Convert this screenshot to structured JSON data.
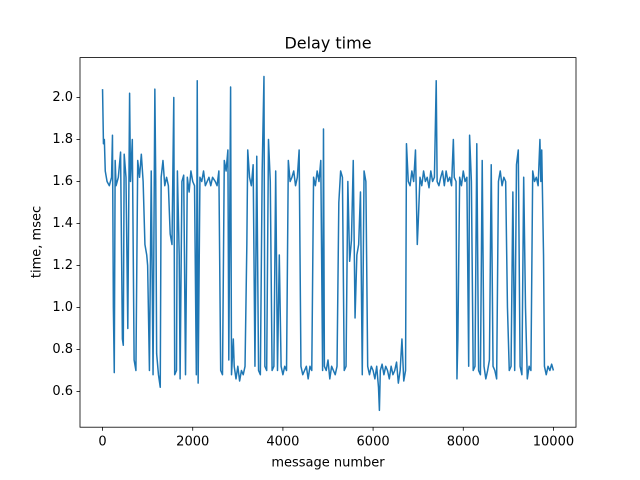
{
  "chart_data": {
    "type": "line",
    "title": "Delay time",
    "x_label": "message number",
    "y_label": "time, msec",
    "color": "#1f77b4",
    "x": [
      0,
      20,
      40,
      60,
      100,
      150,
      200,
      220,
      240,
      260,
      280,
      300,
      350,
      400,
      440,
      460,
      480,
      520,
      560,
      600,
      620,
      660,
      700,
      740,
      780,
      820,
      860,
      900,
      940,
      980,
      1000,
      1040,
      1080,
      1120,
      1160,
      1180,
      1200,
      1240,
      1280,
      1300,
      1340,
      1380,
      1420,
      1460,
      1500,
      1540,
      1580,
      1600,
      1640,
      1660,
      1700,
      1720,
      1760,
      1800,
      1840,
      1880,
      1920,
      1960,
      2000,
      2040,
      2080,
      2100,
      2120,
      2160,
      2200,
      2240,
      2280,
      2320,
      2360,
      2400,
      2440,
      2500,
      2540,
      2580,
      2620,
      2660,
      2700,
      2740,
      2780,
      2800,
      2840,
      2860,
      2900,
      2920,
      2960,
      3000,
      3040,
      3080,
      3120,
      3160,
      3200,
      3220,
      3260,
      3300,
      3340,
      3380,
      3420,
      3460,
      3500,
      3540,
      3580,
      3600,
      3640,
      3680,
      3720,
      3760,
      3800,
      3840,
      3880,
      3920,
      3960,
      4000,
      4040,
      4080,
      4120,
      4160,
      4200,
      4240,
      4280,
      4320,
      4360,
      4400,
      4440,
      4480,
      4520,
      4560,
      4600,
      4640,
      4680,
      4720,
      4760,
      4800,
      4840,
      4880,
      4900,
      4920,
      4960,
      5000,
      5040,
      5080,
      5120,
      5160,
      5200,
      5240,
      5280,
      5320,
      5360,
      5400,
      5440,
      5480,
      5520,
      5560,
      5600,
      5640,
      5680,
      5720,
      5760,
      5800,
      5840,
      5880,
      5920,
      5960,
      6000,
      6040,
      6080,
      6120,
      6140,
      6160,
      6200,
      6240,
      6280,
      6320,
      6360,
      6400,
      6440,
      6480,
      6520,
      6560,
      6600,
      6640,
      6680,
      6720,
      6740,
      6780,
      6820,
      6860,
      6900,
      6940,
      6980,
      7000,
      7040,
      7080,
      7120,
      7160,
      7200,
      7240,
      7280,
      7320,
      7360,
      7400,
      7420,
      7460,
      7500,
      7540,
      7580,
      7620,
      7660,
      7700,
      7740,
      7780,
      7800,
      7840,
      7860,
      7880,
      7920,
      7960,
      8000,
      8040,
      8080,
      8120,
      8140,
      8180,
      8220,
      8260,
      8300,
      8340,
      8380,
      8420,
      8460,
      8500,
      8540,
      8580,
      8620,
      8660,
      8700,
      8740,
      8780,
      8820,
      8860,
      8900,
      8940,
      8980,
      9020,
      9060,
      9100,
      9140,
      9180,
      9220,
      9260,
      9300,
      9340,
      9380,
      9420,
      9460,
      9500,
      9540,
      9580,
      9620,
      9660,
      9700,
      9720,
      9740,
      9780,
      9800,
      9840,
      9880,
      9920,
      9960,
      9999
    ],
    "values": [
      2.04,
      1.78,
      1.8,
      1.65,
      1.6,
      1.58,
      1.62,
      1.82,
      1.0,
      0.69,
      1.7,
      1.58,
      1.62,
      1.74,
      0.85,
      0.82,
      1.73,
      1.62,
      0.9,
      2.02,
      1.6,
      1.8,
      0.75,
      0.7,
      1.7,
      1.62,
      1.73,
      1.6,
      1.3,
      1.25,
      1.2,
      0.7,
      1.65,
      0.68,
      2.04,
      1.6,
      0.78,
      0.68,
      0.62,
      1.62,
      1.7,
      1.58,
      1.62,
      1.58,
      1.35,
      1.3,
      2.0,
      0.68,
      0.7,
      1.65,
      1.25,
      0.66,
      1.6,
      1.63,
      0.68,
      1.62,
      1.55,
      1.65,
      1.6,
      1.58,
      0.68,
      2.08,
      0.64,
      1.62,
      1.6,
      1.65,
      1.58,
      1.6,
      1.62,
      1.58,
      1.62,
      1.6,
      1.58,
      1.65,
      0.7,
      0.68,
      1.7,
      1.65,
      1.75,
      0.75,
      2.05,
      0.68,
      0.85,
      0.72,
      0.66,
      0.72,
      0.65,
      0.7,
      0.68,
      0.72,
      1.3,
      1.75,
      1.62,
      1.58,
      1.68,
      0.72,
      1.72,
      0.7,
      0.68,
      1.65,
      2.1,
      0.72,
      0.7,
      1.8,
      1.6,
      0.7,
      0.72,
      1.65,
      0.7,
      1.25,
      0.72,
      0.68,
      0.72,
      0.7,
      1.7,
      1.6,
      1.62,
      1.65,
      1.58,
      1.62,
      1.75,
      0.72,
      0.68,
      0.7,
      0.72,
      0.66,
      0.72,
      0.7,
      1.62,
      1.58,
      1.65,
      1.6,
      1.7,
      0.7,
      1.85,
      0.72,
      0.7,
      0.75,
      0.66,
      0.72,
      0.7,
      0.68,
      0.72,
      1.5,
      1.65,
      1.62,
      0.7,
      0.72,
      1.6,
      1.22,
      1.32,
      1.7,
      0.95,
      1.25,
      1.3,
      1.55,
      0.68,
      1.65,
      1.6,
      0.72,
      0.68,
      0.72,
      0.7,
      0.66,
      0.72,
      0.62,
      0.51,
      0.7,
      0.73,
      0.68,
      0.72,
      0.7,
      0.66,
      0.72,
      0.68,
      0.7,
      0.74,
      0.64,
      0.7,
      0.85,
      0.65,
      0.7,
      1.78,
      1.6,
      1.58,
      1.65,
      1.6,
      1.75,
      1.3,
      1.4,
      1.62,
      1.58,
      1.65,
      1.6,
      1.62,
      1.57,
      1.65,
      1.6,
      1.62,
      2.08,
      1.6,
      1.58,
      1.62,
      1.65,
      1.58,
      1.65,
      1.6,
      1.62,
      1.58,
      1.8,
      1.62,
      1.6,
      0.66,
      0.85,
      1.62,
      1.58,
      1.65,
      1.6,
      1.62,
      0.72,
      1.82,
      1.6,
      0.7,
      0.72,
      1.78,
      0.7,
      0.68,
      1.7,
      0.72,
      0.66,
      0.7,
      0.75,
      1.68,
      0.72,
      0.7,
      0.66,
      1.6,
      1.65,
      1.58,
      1.62,
      1.6,
      1.0,
      0.7,
      0.72,
      1.55,
      0.7,
      1.68,
      1.75,
      0.72,
      0.68,
      1.62,
      1.0,
      0.66,
      0.72,
      0.7,
      1.65,
      1.6,
      1.62,
      1.58,
      1.8,
      1.6,
      1.75,
      1.25,
      0.72,
      0.68,
      0.72,
      0.7,
      0.73,
      0.7
    ],
    "xlim": [
      -500,
      10500
    ],
    "xticks": [
      0,
      2000,
      4000,
      6000,
      8000,
      10000
    ],
    "ylim": [
      0.43,
      2.19
    ],
    "yticks": [
      0.6,
      0.8,
      {
        "value": 1,
        "label": "1.0"
      },
      1.2,
      1.4,
      1.6,
      1.8,
      {
        "value": 2,
        "label": "2.0"
      }
    ]
  }
}
